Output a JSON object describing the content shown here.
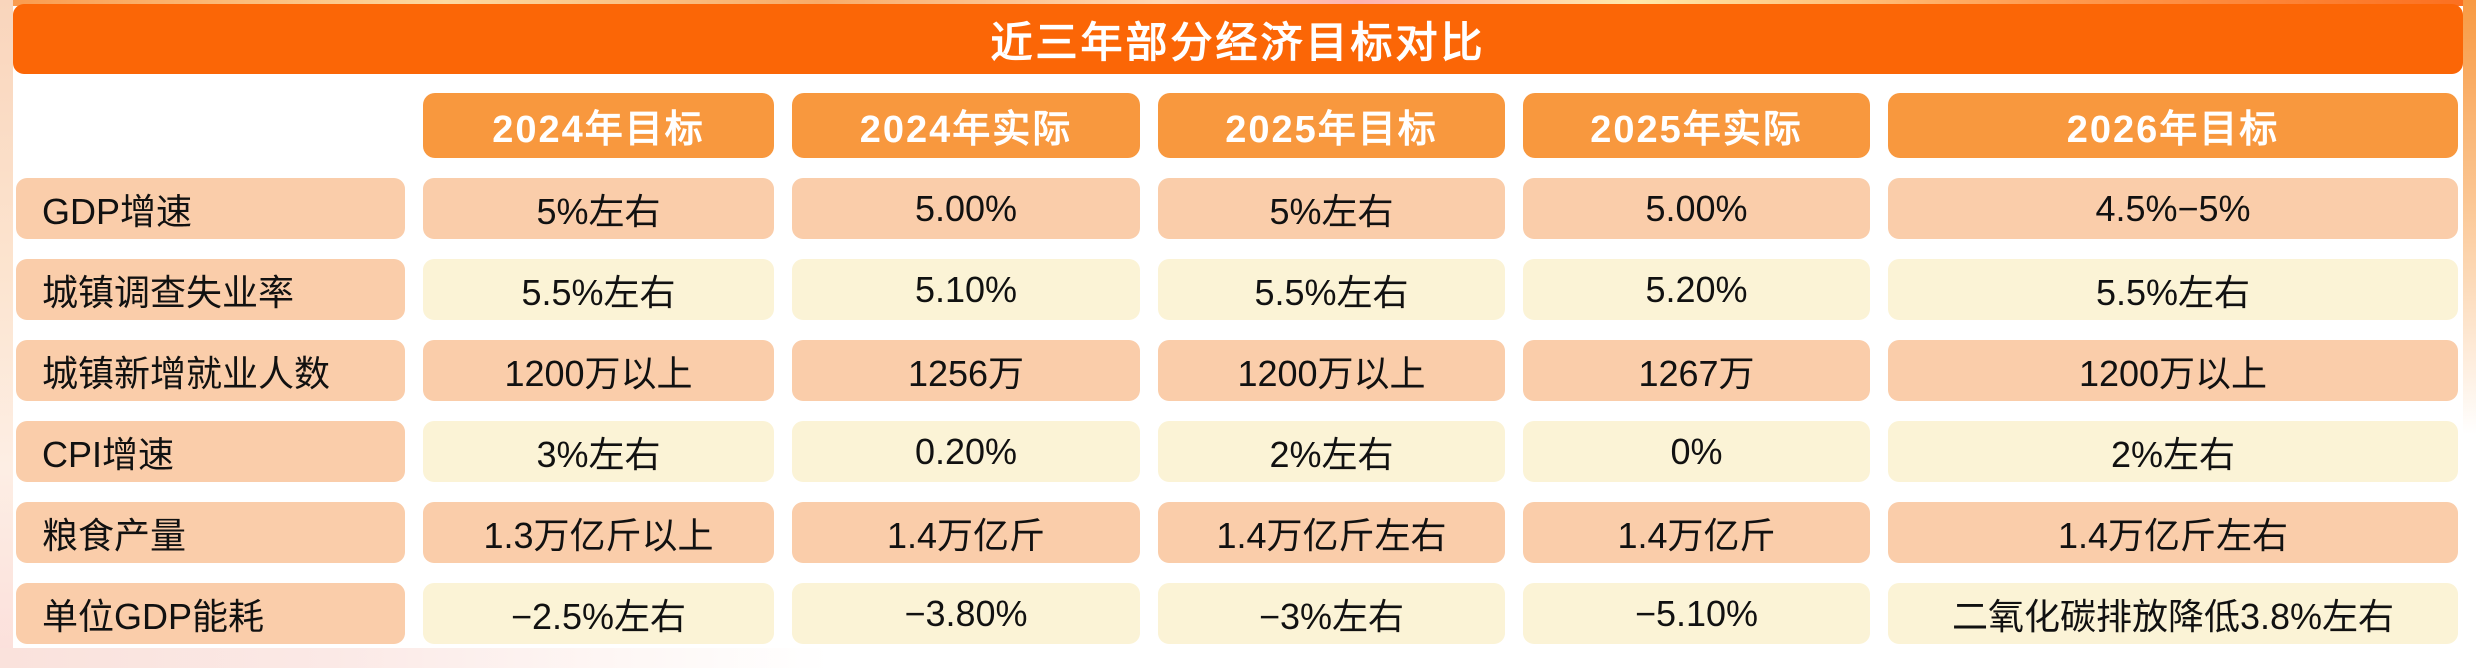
{
  "chart_data": {
    "type": "table",
    "title": "近三年部分经济目标对比",
    "column_headers": [
      "2024年目标",
      "2024年实际",
      "2025年目标",
      "2025年实际",
      "2026年目标"
    ],
    "rows": [
      {
        "label": "GDP增速",
        "values": [
          "5%左右",
          "5.00%",
          "5%左右",
          "5.00%",
          "4.5%−5%"
        ]
      },
      {
        "label": "城镇调查失业率",
        "values": [
          "5.5%左右",
          "5.10%",
          "5.5%左右",
          "5.20%",
          "5.5%左右"
        ]
      },
      {
        "label": "城镇新增就业人数",
        "values": [
          "1200万以上",
          "1256万",
          "1200万以上",
          "1267万",
          "1200万以上"
        ]
      },
      {
        "label": "CPI增速",
        "values": [
          "3%左右",
          "0.20%",
          "2%左右",
          "0%",
          "2%左右"
        ]
      },
      {
        "label": "粮食产量",
        "values": [
          "1.3万亿斤以上",
          "1.4万亿斤",
          "1.4万亿斤左右",
          "1.4万亿斤",
          "1.4万亿斤左右"
        ]
      },
      {
        "label": "单位GDP能耗",
        "values": [
          "−2.5%左右",
          "−3.80%",
          "−3%左右",
          "−5.10%",
          "二氧化碳排放降低3.8%左右"
        ]
      }
    ]
  },
  "colors": {
    "title_bar": "#fb6606",
    "header_chip": "#f8983e",
    "cell_peach": "#facdaa",
    "cell_cream": "#fbf3d6",
    "text": "#111111"
  }
}
